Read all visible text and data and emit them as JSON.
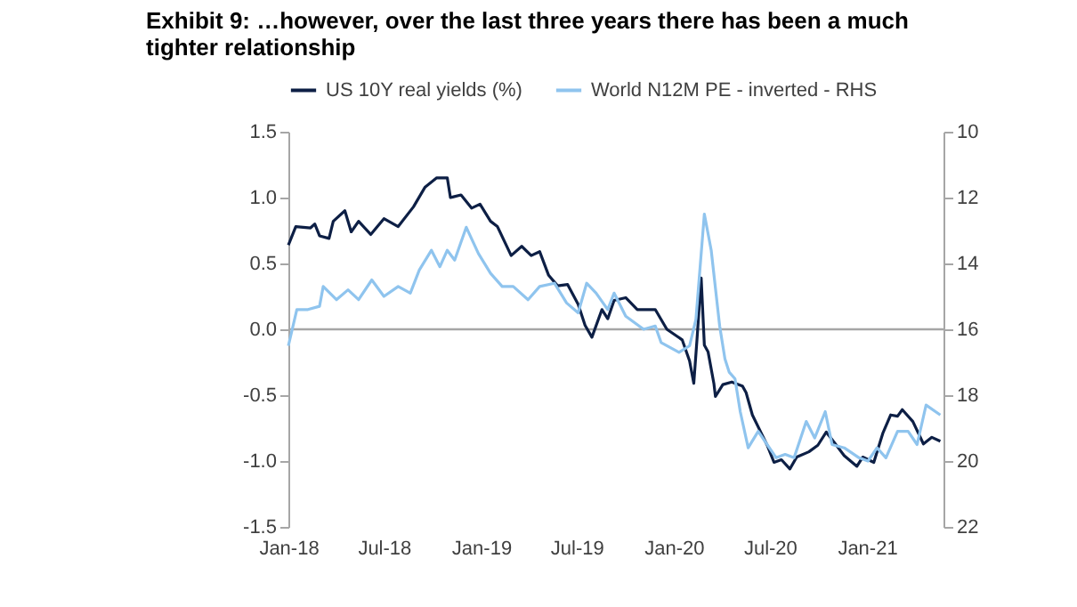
{
  "chart_data": {
    "type": "line",
    "title": "Exhibit 9: …however, over the last three years there has been a much tighter relationship",
    "xlim": [
      "2018-01-01",
      "2021-05-26"
    ],
    "xticks": [
      {
        "value": "2018-01-01",
        "label": "Jan-18"
      },
      {
        "value": "2018-07-01",
        "label": "Jul-18"
      },
      {
        "value": "2019-01-01",
        "label": "Jan-19"
      },
      {
        "value": "2019-07-01",
        "label": "Jul-19"
      },
      {
        "value": "2020-01-01",
        "label": "Jan-20"
      },
      {
        "value": "2020-07-01",
        "label": "Jul-20"
      },
      {
        "value": "2021-01-01",
        "label": "Jan-21"
      }
    ],
    "ylim": [
      -1.5,
      1.5
    ],
    "yticks": [
      {
        "value": -1.5,
        "label": "-1.5"
      },
      {
        "value": -1,
        "label": "-1.0"
      },
      {
        "value": -0.5,
        "label": "-0.5"
      },
      {
        "value": 0,
        "label": "0.0"
      },
      {
        "value": 0.5,
        "label": "0.5"
      },
      {
        "value": 1,
        "label": "1.0"
      },
      {
        "value": 1.5,
        "label": "1.5"
      }
    ],
    "y2lim": [
      22,
      10
    ],
    "y2ticks": [
      10,
      12,
      14,
      16,
      18,
      20,
      22
    ],
    "legend": "top",
    "grid": false,
    "marker": "none",
    "line_style": "solid",
    "ref_lines": [
      {
        "axis": "y",
        "value": 0,
        "color": "#a6a6a6"
      }
    ],
    "series": [
      {
        "name": "US 10Y real yields (%)",
        "color": "#0d1f45",
        "x": [
          "2018-01-01",
          "2018-01-15",
          "2018-02-12",
          "2018-02-20",
          "2018-03-01",
          "2018-03-19",
          "2018-03-27",
          "2018-04-18",
          "2018-04-30",
          "2018-05-14",
          "2018-06-06",
          "2018-07-01",
          "2018-07-28",
          "2018-08-26",
          "2018-09-17",
          "2018-10-09",
          "2018-10-29",
          "2018-11-04",
          "2018-11-24",
          "2018-12-14",
          "2018-12-30",
          "2019-01-19",
          "2019-02-01",
          "2019-02-27",
          "2019-03-19",
          "2019-04-06",
          "2019-04-22",
          "2019-05-09",
          "2019-05-26",
          "2019-06-14",
          "2019-07-04",
          "2019-07-17",
          "2019-07-30",
          "2019-08-18",
          "2019-08-29",
          "2019-09-10",
          "2019-10-02",
          "2019-10-24",
          "2019-11-27",
          "2019-12-19",
          "2020-01-17",
          "2020-01-31",
          "2020-02-08",
          "2020-02-14",
          "2020-02-22",
          "2020-02-28",
          "2020-03-06",
          "2020-03-17",
          "2020-03-20",
          "2020-04-03",
          "2020-04-20",
          "2020-05-10",
          "2020-05-17",
          "2020-05-29",
          "2020-06-15",
          "2020-06-26",
          "2020-07-09",
          "2020-07-23",
          "2020-08-08",
          "2020-08-21",
          "2020-09-13",
          "2020-09-30",
          "2020-10-16",
          "2020-11-06",
          "2020-11-19",
          "2020-12-13",
          "2020-12-24",
          "2021-01-14",
          "2021-01-31",
          "2021-02-15",
          "2021-02-28",
          "2021-03-09",
          "2021-03-29",
          "2021-04-18",
          "2021-05-04",
          "2021-05-20"
        ],
        "values": [
          0.64,
          0.78,
          0.77,
          0.8,
          0.71,
          0.69,
          0.82,
          0.9,
          0.74,
          0.82,
          0.72,
          0.84,
          0.78,
          0.93,
          1.08,
          1.15,
          1.15,
          1.0,
          1.02,
          0.92,
          0.95,
          0.82,
          0.78,
          0.56,
          0.63,
          0.56,
          0.59,
          0.41,
          0.33,
          0.34,
          0.19,
          0.03,
          -0.06,
          0.15,
          0.08,
          0.22,
          0.24,
          0.15,
          0.15,
          0.0,
          -0.08,
          -0.24,
          -0.41,
          -0.08,
          0.39,
          -0.12,
          -0.17,
          -0.41,
          -0.51,
          -0.42,
          -0.4,
          -0.43,
          -0.48,
          -0.65,
          -0.79,
          -0.88,
          -1.01,
          -0.99,
          -1.06,
          -0.97,
          -0.93,
          -0.88,
          -0.78,
          -0.89,
          -0.96,
          -1.04,
          -0.97,
          -1.01,
          -0.79,
          -0.65,
          -0.66,
          -0.61,
          -0.7,
          -0.87,
          -0.82,
          -0.85
        ]
      },
      {
        "name": "World N12M PE - inverted - RHS",
        "color": "#8fc4ee",
        "axis": "y2",
        "x": [
          "2018-01-01",
          "2018-01-17",
          "2018-02-07",
          "2018-03-01",
          "2018-03-08",
          "2018-04-02",
          "2018-04-24",
          "2018-05-14",
          "2018-06-08",
          "2018-07-01",
          "2018-07-28",
          "2018-08-20",
          "2018-09-06",
          "2018-09-29",
          "2018-10-15",
          "2018-10-29",
          "2018-11-12",
          "2018-12-04",
          "2018-12-27",
          "2019-01-19",
          "2019-02-10",
          "2019-03-03",
          "2019-03-31",
          "2019-04-22",
          "2019-05-20",
          "2019-06-12",
          "2019-07-04",
          "2019-07-20",
          "2019-08-07",
          "2019-08-29",
          "2019-09-10",
          "2019-10-02",
          "2019-11-05",
          "2019-11-27",
          "2019-12-08",
          "2020-01-11",
          "2020-01-31",
          "2020-02-12",
          "2020-02-28",
          "2020-03-12",
          "2020-03-28",
          "2020-04-07",
          "2020-04-15",
          "2020-04-26",
          "2020-05-06",
          "2020-05-21",
          "2020-06-09",
          "2020-06-26",
          "2020-07-13",
          "2020-07-30",
          "2020-08-16",
          "2020-09-08",
          "2020-09-24",
          "2020-10-14",
          "2020-10-27",
          "2020-11-19",
          "2020-12-17",
          "2021-01-03",
          "2021-01-20",
          "2021-02-06",
          "2021-02-28",
          "2021-03-20",
          "2021-04-06",
          "2021-04-23",
          "2021-05-20"
        ],
        "values": [
          16.5,
          15.4,
          15.4,
          15.3,
          14.7,
          15.1,
          14.8,
          15.1,
          14.5,
          15.0,
          14.7,
          14.9,
          14.2,
          13.6,
          14.1,
          13.6,
          13.9,
          12.9,
          13.7,
          14.3,
          14.7,
          14.7,
          15.1,
          14.7,
          14.6,
          15.2,
          15.5,
          14.6,
          14.9,
          15.4,
          14.9,
          15.6,
          16.0,
          15.9,
          16.4,
          16.7,
          16.5,
          15.7,
          12.5,
          13.6,
          15.9,
          16.9,
          17.3,
          17.5,
          18.5,
          19.6,
          19.1,
          19.5,
          19.9,
          19.8,
          19.9,
          18.8,
          19.3,
          18.5,
          19.5,
          19.6,
          19.9,
          20.0,
          19.6,
          19.9,
          19.1,
          19.1,
          19.5,
          18.3,
          18.6
        ]
      }
    ]
  }
}
